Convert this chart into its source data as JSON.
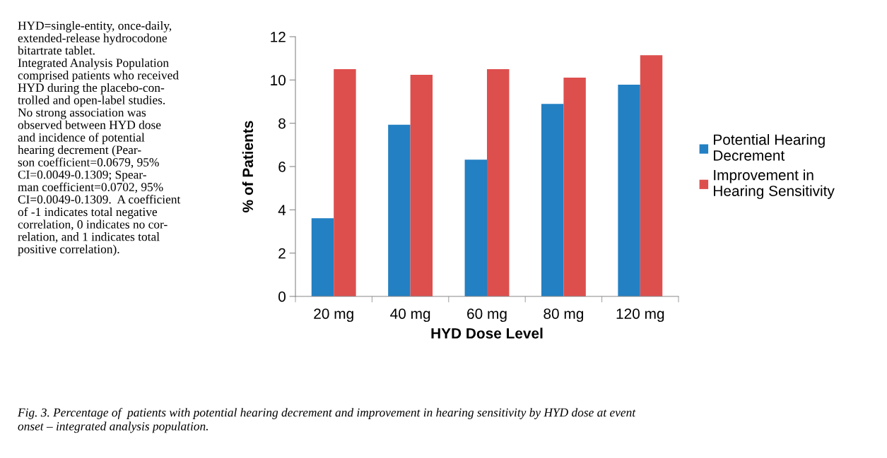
{
  "chart_data": {
    "type": "bar",
    "xlabel": "HYD Dose Level",
    "ylabel": "% of Patients",
    "categories": [
      "20 mg",
      "40 mg",
      "60 mg",
      "80 mg",
      "120 mg"
    ],
    "series": [
      {
        "name": "Potential Hearing\nDecrement",
        "color": "#2380c3",
        "values": [
          3.61,
          7.93,
          6.32,
          8.89,
          9.78
        ]
      },
      {
        "name": "Improvement in\nHearing Sensitivity",
        "color": "#dd4f4d",
        "values": [
          10.5,
          10.24,
          10.5,
          10.11,
          11.14
        ]
      }
    ],
    "ylim": [
      0,
      12
    ],
    "yticks": [
      0,
      2,
      4,
      6,
      8,
      10,
      12
    ],
    "grid": false,
    "legend": "right",
    "annotations": [
      "HYD=single-entity, once-daily,\nextended-release hydrocodone\nbitartrate tablet.\nIntegrated Analysis Population\ncomprised patients who received\nHYD during the placebo-con-\ntrolled and open-label studies.\nNo strong association was\nobserved between HYD dose\nand incidence of potential\nhearing decrement (Pear-\nson coefficient=0.0679, 95%\nCI=0.0049-0.1309; Spear-\nman coefficient=0.0702, 95%\nCI=0.0049-0.1309.  A coefficient\nof -1 indicates total negative\ncorrelation, 0 indicates no cor-\nrelation, and 1 indicates total\npositive correlation).",
      "Fig. 3. Percentage of  patients with potential hearing decrement and improvement in hearing sensitivity by HYD dose at event\nonset – integrated analysis population."
    ]
  }
}
